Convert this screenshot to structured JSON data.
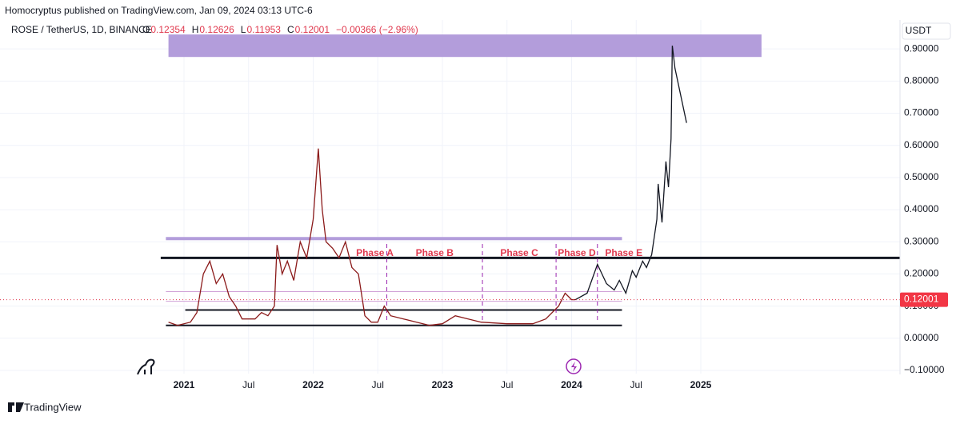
{
  "header": {
    "publisher": "Homocryptus published on TradingView.com, Jan 09, 2024 03:13 UTC-6",
    "symbol": "ROSE / TetherUS, 1D, BINANCE",
    "ohlc": [
      {
        "label": "O",
        "value": "0.12354"
      },
      {
        "label": "H",
        "value": "0.12626"
      },
      {
        "label": "L",
        "value": "0.11953"
      },
      {
        "label": "C",
        "value": "0.12001"
      }
    ],
    "change": "−0.00366 (−2.96%)"
  },
  "footer": {
    "brand": "TradingView"
  },
  "chart_data": {
    "type": "line",
    "currency": "USDT",
    "xlim": [
      2019.576,
      2026.542
    ],
    "xticks": [
      {
        "value": 2021,
        "label": "2021"
      },
      {
        "value": 2021.5,
        "label": "Jul"
      },
      {
        "value": 2022,
        "label": "2022"
      },
      {
        "value": 2022.5,
        "label": "Jul"
      },
      {
        "value": 2023,
        "label": "2023"
      },
      {
        "value": 2023.5,
        "label": "Jul"
      },
      {
        "value": 2024,
        "label": "2024"
      },
      {
        "value": 2024.5,
        "label": "Jul"
      },
      {
        "value": 2025,
        "label": "2025"
      }
    ],
    "ylim": [
      -0.11,
      0.99
    ],
    "yticks": [
      {
        "value": 0.9,
        "label": "0.90000"
      },
      {
        "value": 0.8,
        "label": "0.80000"
      },
      {
        "value": 0.7,
        "label": "0.70000"
      },
      {
        "value": 0.6,
        "label": "0.60000"
      },
      {
        "value": 0.5,
        "label": "0.50000"
      },
      {
        "value": 0.4,
        "label": "0.40000"
      },
      {
        "value": 0.3,
        "label": "0.30000"
      },
      {
        "value": 0.2,
        "label": "0.20000"
      },
      {
        "value": 0.1,
        "label": "0.10000"
      },
      {
        "value": 0,
        "label": "0.00000"
      },
      {
        "value": -0.1,
        "label": "−0.10000"
      }
    ],
    "grid": true,
    "last_price": {
      "value": 0.12001,
      "label": "0.12001"
    },
    "series": [
      {
        "color": "#8b1a1a",
        "x": [
          2020.88,
          2020.95,
          2021.05,
          2021.1,
          2021.15,
          2021.2,
          2021.25,
          2021.3,
          2021.35,
          2021.4,
          2021.45,
          2021.55,
          2021.6,
          2021.65,
          2021.7,
          2021.72,
          2021.76,
          2021.8,
          2021.85,
          2021.9,
          2021.95,
          2022.0,
          2022.04,
          2022.07,
          2022.1,
          2022.15,
          2022.2,
          2022.25,
          2022.3,
          2022.35,
          2022.4,
          2022.45,
          2022.5,
          2022.55,
          2022.6,
          2022.7,
          2022.8,
          2022.9,
          2023.0,
          2023.1,
          2023.2,
          2023.3,
          2023.5,
          2023.7,
          2023.8,
          2023.9,
          2023.95,
          2024.0,
          2024.03
        ],
        "values": [
          0.05,
          0.04,
          0.05,
          0.08,
          0.2,
          0.24,
          0.17,
          0.2,
          0.13,
          0.1,
          0.06,
          0.06,
          0.08,
          0.07,
          0.1,
          0.29,
          0.2,
          0.24,
          0.18,
          0.3,
          0.25,
          0.37,
          0.59,
          0.4,
          0.3,
          0.28,
          0.25,
          0.3,
          0.22,
          0.2,
          0.07,
          0.05,
          0.05,
          0.1,
          0.07,
          0.06,
          0.05,
          0.04,
          0.045,
          0.07,
          0.06,
          0.05,
          0.045,
          0.045,
          0.06,
          0.1,
          0.14,
          0.12,
          0.12
        ]
      },
      {
        "color": "#131722",
        "x": [
          2024.03,
          2024.12,
          2024.2,
          2024.27,
          2024.33,
          2024.37,
          2024.42,
          2024.47,
          2024.5,
          2024.55,
          2024.58,
          2024.62,
          2024.66,
          2024.67,
          2024.7,
          2024.73,
          2024.75,
          2024.77,
          2024.78,
          2024.8,
          2024.89
        ],
        "values": [
          0.12,
          0.14,
          0.23,
          0.17,
          0.15,
          0.18,
          0.14,
          0.21,
          0.19,
          0.24,
          0.22,
          0.26,
          0.37,
          0.48,
          0.36,
          0.55,
          0.47,
          0.62,
          0.91,
          0.84,
          0.67
        ]
      }
    ],
    "levels": [
      {
        "y": 0.25,
        "x": [
          2020.82,
          2026.542
        ],
        "color": "#131722",
        "width": 3
      },
      {
        "y": 0.31,
        "x": [
          2020.86,
          2024.39
        ],
        "color": "#b39ddb",
        "width": 4
      },
      {
        "y": 0.145,
        "x": [
          2020.86,
          2024.39
        ],
        "color": "#d1a3d8",
        "width": 1
      },
      {
        "y": 0.115,
        "x": [
          2020.86,
          2024.39
        ],
        "color": "#d1a3d8",
        "width": 1
      },
      {
        "y": 0.088,
        "x": [
          2021.01,
          2024.39
        ],
        "color": "#131722",
        "width": 2
      },
      {
        "y": 0.04,
        "x": [
          2020.86,
          2024.39
        ],
        "color": "#131722",
        "width": 2
      }
    ],
    "zone": {
      "y": [
        0.875,
        0.945
      ],
      "x": [
        2020.88,
        2025.47
      ],
      "color": "#b39ddb"
    },
    "phase_lines": [
      2022.57,
      2023.31,
      2023.88,
      2024.2
    ],
    "phases": [
      "Phase A",
      "Phase B",
      "Phase C",
      "Phase D",
      "Phase E"
    ]
  }
}
